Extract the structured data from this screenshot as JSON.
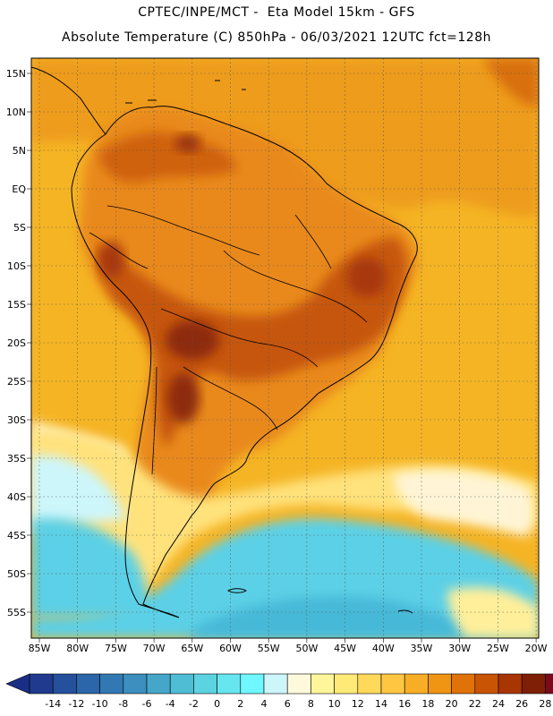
{
  "header": {
    "line1": "CPTEC/INPE/MCT -  Eta Model 15km - GFS",
    "line2": "Absolute Temperature (C) 850hPa - 06/03/2021 12UTC fct=128h"
  },
  "map": {
    "lat_labels": [
      "15N",
      "10N",
      "5N",
      "EQ",
      "5S",
      "10S",
      "15S",
      "20S",
      "25S",
      "30S",
      "35S",
      "40S",
      "45S",
      "50S",
      "55S"
    ],
    "lon_labels": [
      "85W",
      "80W",
      "75W",
      "70W",
      "65W",
      "60W",
      "55W",
      "50W",
      "45W",
      "40W",
      "35W",
      "30W",
      "25W",
      "20W"
    ]
  },
  "colorbar": {
    "labels": [
      "-14",
      "-12",
      "-10",
      "-8",
      "-6",
      "-4",
      "-2",
      "0",
      "2",
      "4",
      "6",
      "8",
      "10",
      "12",
      "14",
      "16",
      "18",
      "20",
      "22",
      "24",
      "26",
      "28"
    ],
    "colors": [
      "#1f3a8f",
      "#24509c",
      "#2a66a9",
      "#3279b3",
      "#3c8fbe",
      "#45a6c9",
      "#4fbdd4",
      "#5cd3e0",
      "#66e6ef",
      "#6ff8ff",
      "#cdf6fb",
      "#fff9dc",
      "#fff59a",
      "#ffe977",
      "#ffd95a",
      "#ffc641",
      "#f7ae25",
      "#ef9413",
      "#e0720a",
      "#c95404",
      "#a93503",
      "#7e1f06",
      "#7a0b1d"
    ],
    "left_arrow_color": "#1b2e86",
    "right_arrow_color": "#7a0b1d"
  },
  "palette": {
    "ocean_warm": "#f5b424",
    "land_warm": "#eb8f19",
    "land_hot": "#c6570b",
    "core_hot": "#8e2a08",
    "cool_band": "#5bd0e6",
    "cold_band": "#47b9d8",
    "pale": "#fff6cc",
    "yellow": "#ffe27b"
  }
}
